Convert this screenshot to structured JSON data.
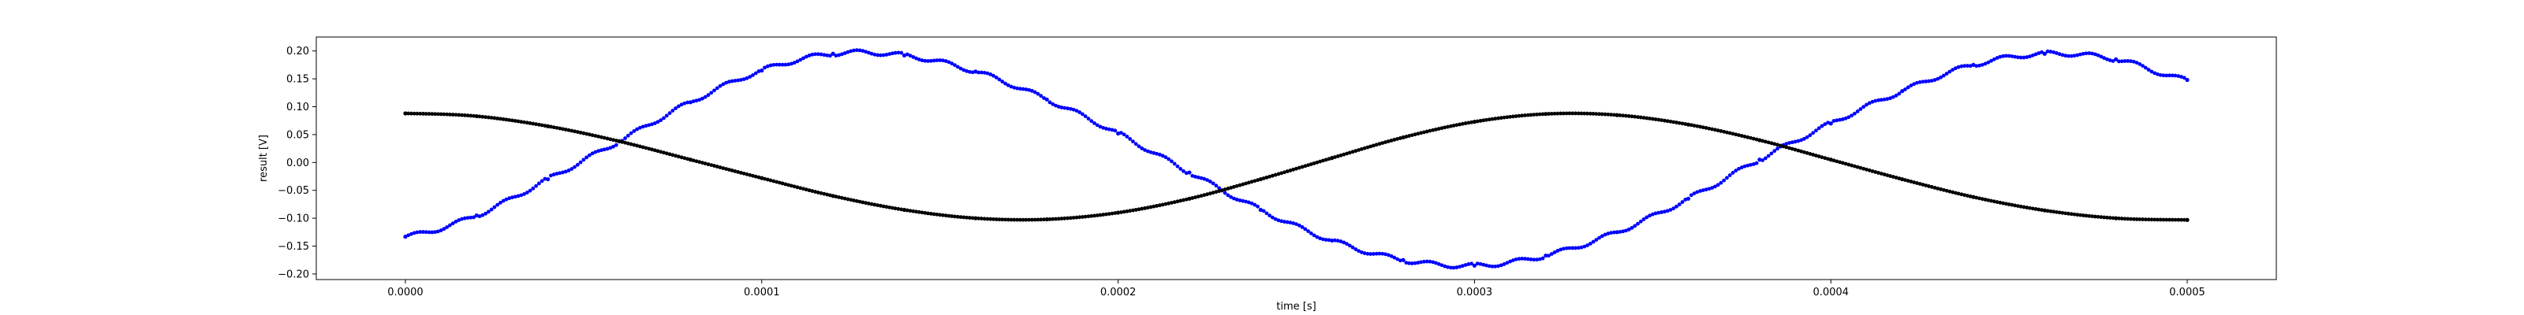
{
  "chart_data": {
    "type": "scatter",
    "title": "",
    "xlabel": "time [s]",
    "ylabel": "result [V]",
    "xlim": [
      -2.5e-05,
      0.000525
    ],
    "ylim": [
      -0.21,
      0.225
    ],
    "grid": false,
    "legend": "none",
    "x_ticks": [
      0.0,
      0.0001,
      0.0002,
      0.0003,
      0.0004,
      0.0005
    ],
    "x_tick_labels": [
      "0.0000",
      "0.0001",
      "0.0002",
      "0.0003",
      "0.0004",
      "0.0005"
    ],
    "y_ticks": [
      -0.2,
      -0.15,
      -0.1,
      -0.05,
      0.0,
      0.05,
      0.1,
      0.15,
      0.2
    ],
    "y_tick_labels": [
      "−0.20",
      "−0.15",
      "−0.10",
      "−0.05",
      "0.00",
      "0.05",
      "0.10",
      "0.15",
      "0.20"
    ],
    "series": [
      {
        "color": "#0000ff",
        "x": [
          0.0,
          2e-05,
          4e-05,
          6e-05,
          8e-05,
          0.0001,
          0.00012,
          0.00014,
          0.00016,
          0.00018,
          0.0002,
          0.00022,
          0.00024,
          0.00026,
          0.00028,
          0.0003,
          0.00032,
          0.00034,
          0.00036,
          0.00038,
          0.0004,
          0.00042,
          0.00044,
          0.00046,
          0.00048,
          0.0005
        ],
        "values": [
          -0.133,
          -0.095,
          -0.03,
          0.038,
          0.108,
          0.165,
          0.195,
          0.192,
          0.163,
          0.113,
          0.052,
          -0.018,
          -0.085,
          -0.14,
          -0.175,
          -0.185,
          -0.167,
          -0.125,
          -0.065,
          0.005,
          0.07,
          0.128,
          0.175,
          0.195,
          0.185,
          0.148
        ]
      },
      {
        "color": "#000000",
        "x": [
          0.0,
          2e-05,
          4e-05,
          6e-05,
          8e-05,
          0.0001,
          0.00012,
          0.00014,
          0.00016,
          0.00018,
          0.0002,
          0.00022,
          0.00024,
          0.00026,
          0.00028,
          0.0003,
          0.00032,
          0.00034,
          0.00036,
          0.00038,
          0.0004,
          0.00042,
          0.00044,
          0.00046,
          0.00048,
          0.0005
        ],
        "values": [
          0.088,
          0.083,
          0.065,
          0.038,
          0.005,
          -0.028,
          -0.06,
          -0.085,
          -0.1,
          -0.102,
          -0.09,
          -0.065,
          -0.03,
          0.008,
          0.045,
          0.073,
          0.087,
          0.085,
          0.068,
          0.04,
          0.005,
          -0.03,
          -0.062,
          -0.086,
          -0.1,
          -0.103
        ]
      }
    ]
  }
}
